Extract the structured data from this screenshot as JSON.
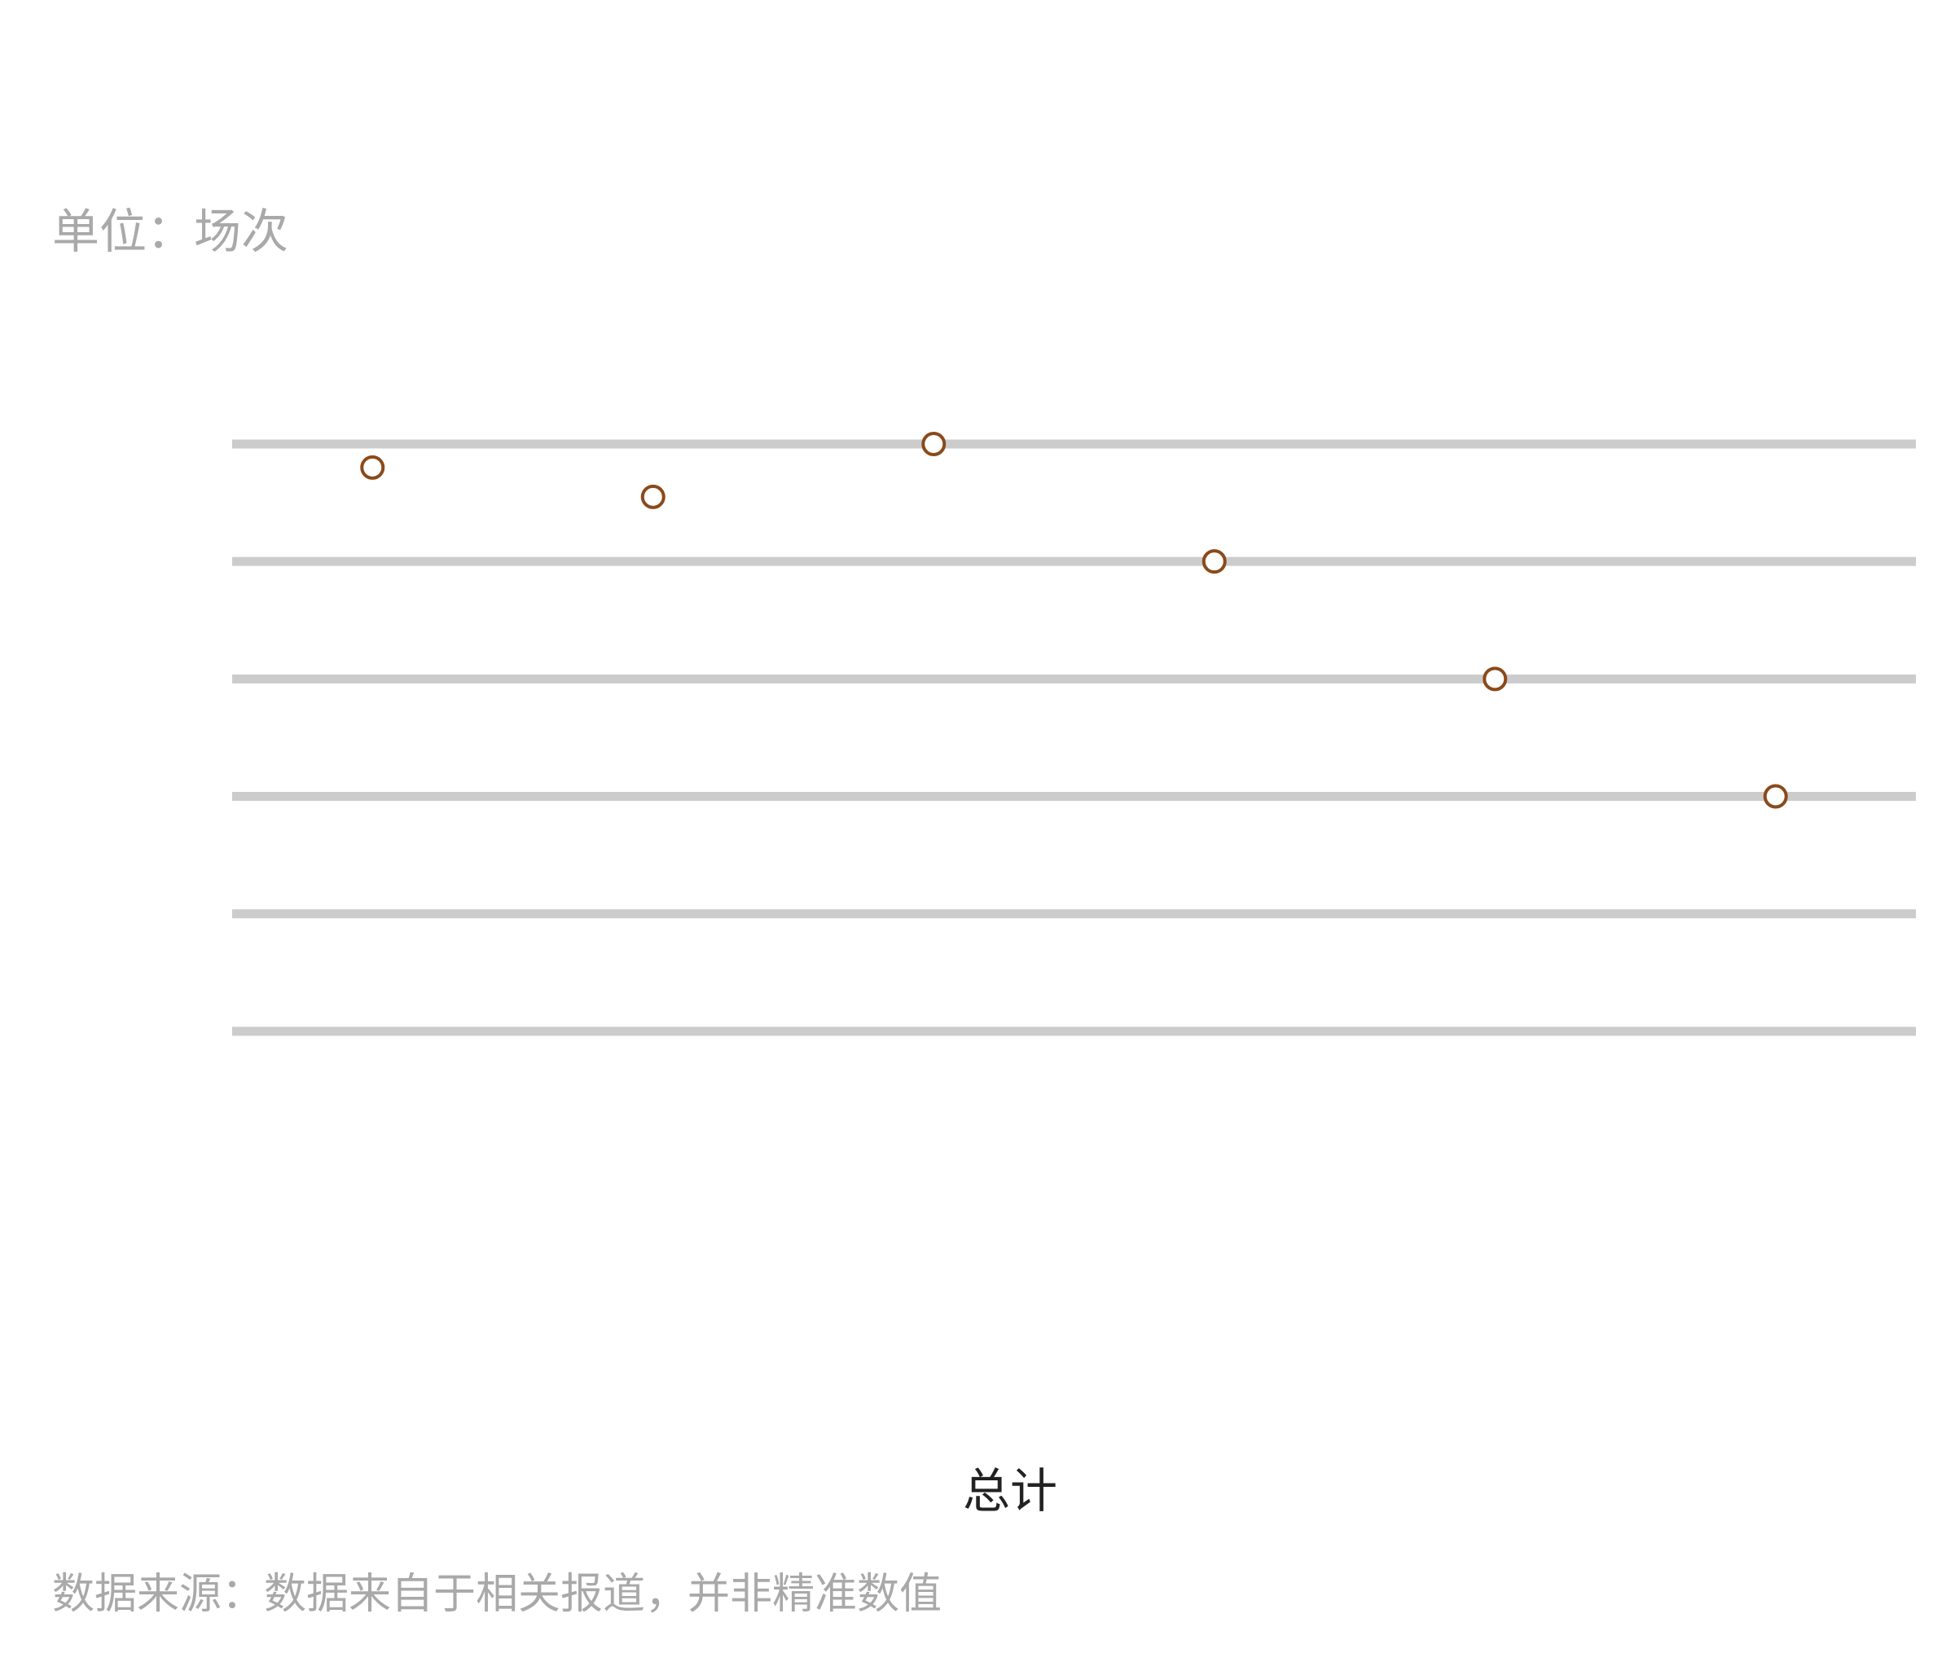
{
  "unit_label": "单位：场次",
  "source_note": "数据来源：数据来自于相关报道，并非精准数值",
  "colors": {
    "grid": "#cccccc",
    "marker_stroke": "#8b4a1a",
    "marker_fill": "#ffffff"
  },
  "chart_data": {
    "type": "scatter",
    "title": "",
    "xlabel": "总计",
    "ylabel": "",
    "grid": true,
    "legend": "none",
    "marker": "hollow-circle",
    "points": [
      {
        "x": 1,
        "y": 96
      },
      {
        "x": 2,
        "y": 91
      },
      {
        "x": 3,
        "y": 100
      },
      {
        "x": 4,
        "y": 80
      },
      {
        "x": 5,
        "y": 60
      },
      {
        "x": 6,
        "y": 40
      }
    ],
    "xlim": [
      0.5,
      6.5
    ],
    "ylim": [
      -20,
      100
    ],
    "y_gridlines": [
      100,
      80,
      60,
      40,
      20,
      0
    ]
  }
}
